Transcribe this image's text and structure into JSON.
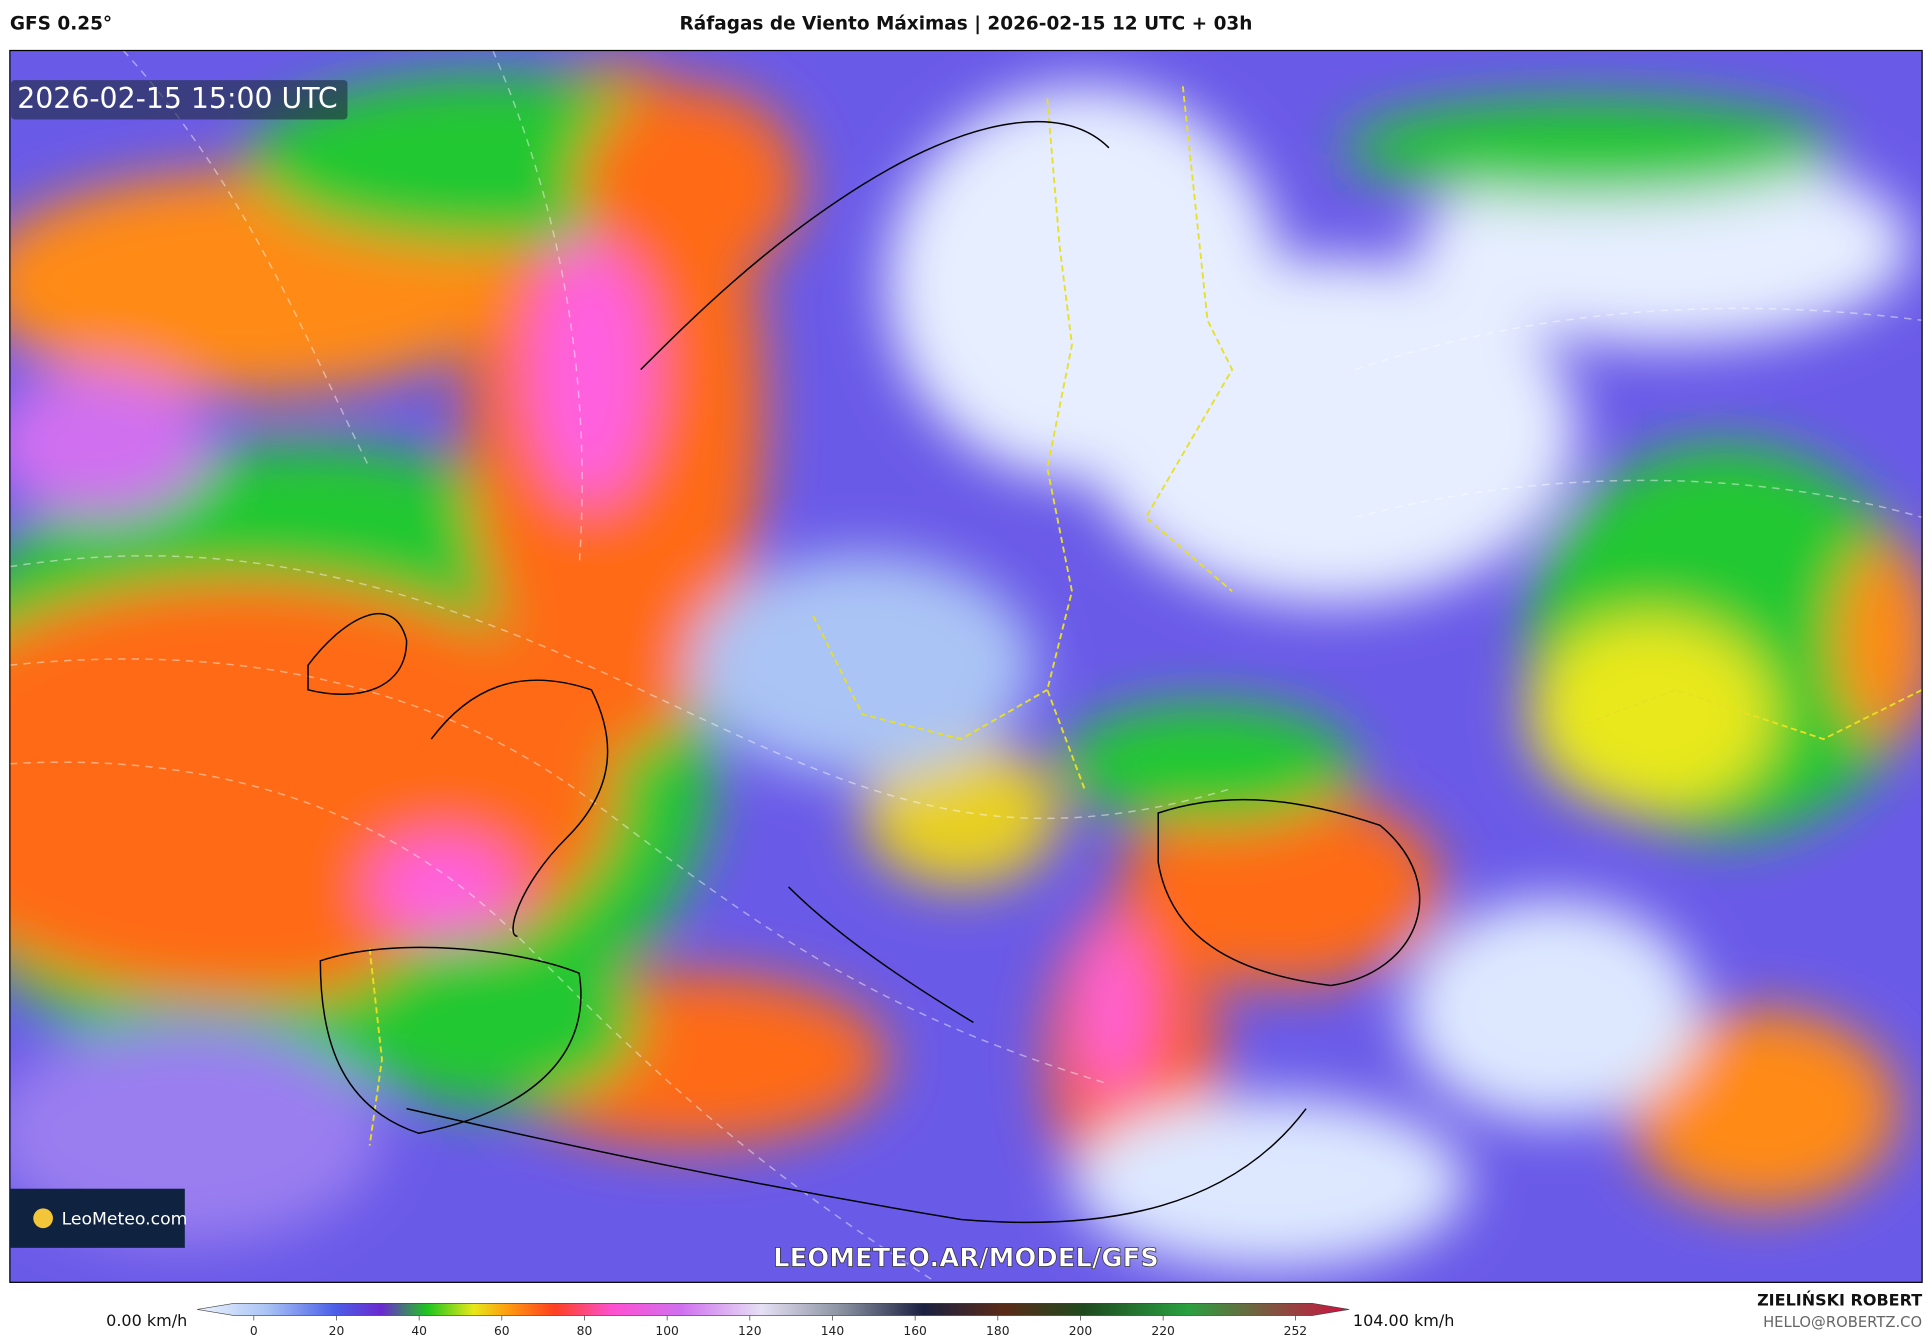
{
  "header": {
    "model": "GFS 0.25°",
    "title": "Ráfagas de Viento Máximas | 2026-02-15 12 UTC + 03h"
  },
  "map": {
    "timestamp": "2026-02-15 15:00 UTC",
    "watermark": "LEOMETEO.AR/MODEL/GFS",
    "logo": "LeoMeteo.com"
  },
  "colorbar": {
    "min_label": "0.00 km/h",
    "max_label": "104.00 km/h",
    "ticks": [
      0,
      20,
      40,
      60,
      80,
      100,
      120,
      140,
      160,
      180,
      200,
      220,
      252
    ]
  },
  "footer": {
    "author": "ZIELIŃSKI ROBERT",
    "email": "HELLO@ROBERTZ.CO"
  }
}
